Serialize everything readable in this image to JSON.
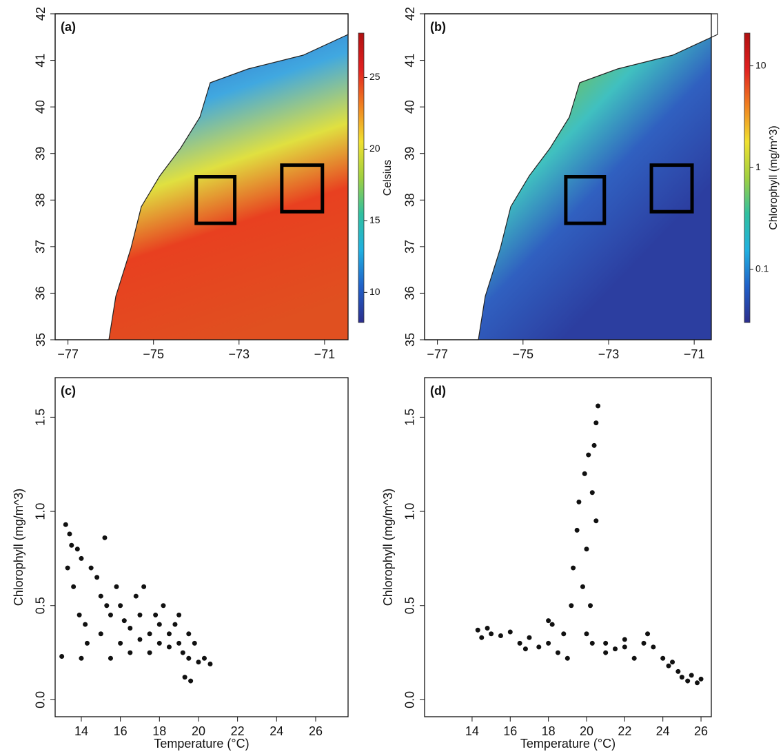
{
  "chart_data": [
    {
      "type": "map",
      "label": "(a)",
      "xlim": [
        -77.3,
        -70.45
      ],
      "ylim": [
        35,
        42
      ],
      "xticks": [
        {
          "value": -77,
          "label": "−77"
        },
        {
          "value": -75,
          "label": "−75"
        },
        {
          "value": -73,
          "label": "−73"
        },
        {
          "value": -71,
          "label": "−71"
        }
      ],
      "yticks": [
        35,
        36,
        37,
        38,
        39,
        40,
        41,
        42
      ],
      "boxes": [
        [
          -74,
          -73.1,
          37.5,
          38.5
        ],
        [
          -72,
          -71.05,
          37.75,
          38.75
        ]
      ],
      "colorbar": {
        "label": "Celsius",
        "lim": [
          7.9,
          28.1
        ],
        "ticks": [
          10,
          15,
          20,
          25
        ],
        "log": false,
        "colors": [
          "#2c2e8c",
          "#2060c8",
          "#20b0e0",
          "#30c0a0",
          "#a0d040",
          "#f0e030",
          "#f08020",
          "#e02020",
          "#b01010"
        ]
      }
    },
    {
      "type": "map",
      "label": "(b)",
      "xlim": [
        -77.3,
        -70.6
      ],
      "ylim": [
        35,
        42
      ],
      "xticks": [
        {
          "value": -77,
          "label": "−77"
        },
        {
          "value": -75,
          "label": "−75"
        },
        {
          "value": -73,
          "label": "−73"
        },
        {
          "value": -71,
          "label": "−71"
        }
      ],
      "yticks": [
        35,
        36,
        37,
        38,
        39,
        40,
        41,
        42
      ],
      "boxes": [
        [
          -74,
          -73.1,
          37.5,
          38.5
        ],
        [
          -72,
          -71.05,
          37.75,
          38.75
        ]
      ],
      "colorbar": {
        "label": "Chlorophyll (mg/m^3)",
        "lim": [
          0.03,
          21
        ],
        "ticks": [
          0.1,
          1,
          10
        ],
        "log": true,
        "colors": [
          "#2c2e8c",
          "#2060c8",
          "#20b0e0",
          "#30c0a0",
          "#a0d040",
          "#f0e030",
          "#f08020",
          "#e02020",
          "#b01010"
        ]
      }
    },
    {
      "type": "scatter",
      "label": "(c)",
      "xlabel": "Temperature (°C)",
      "ylabel": "Chlorophyll (mg/m^3)",
      "xlim": [
        12.66,
        27.66
      ],
      "ylim": [
        -0.09,
        1.71
      ],
      "xticks": [
        14,
        16,
        18,
        20,
        22,
        24,
        26
      ],
      "yticks": [
        {
          "value": 0,
          "label": "0.0"
        },
        0.5,
        {
          "value": 1,
          "label": "1.0"
        },
        1.5
      ],
      "color": "#111111",
      "x": [
        13.2,
        13.4,
        13.5,
        13.8,
        14.0,
        13.3,
        13.6,
        13.9,
        14.2,
        14.5,
        14.8,
        15.0,
        15.2,
        15.3,
        15.5,
        15.8,
        16.0,
        16.2,
        16.5,
        16.8,
        17.0,
        17.2,
        17.5,
        17.8,
        18.0,
        18.2,
        18.5,
        18.8,
        19.0,
        19.2,
        19.5,
        19.8,
        20.0,
        20.3,
        20.6,
        13.0,
        14.0,
        15.5,
        16.5,
        17.5,
        19.3,
        19.6,
        14.3,
        15.0,
        16.0,
        17.0,
        18.5,
        19.0,
        19.5,
        18.0
      ],
      "values": [
        0.93,
        0.88,
        0.82,
        0.8,
        0.75,
        0.7,
        0.6,
        0.45,
        0.4,
        0.7,
        0.65,
        0.55,
        0.86,
        0.5,
        0.45,
        0.6,
        0.5,
        0.42,
        0.38,
        0.55,
        0.45,
        0.6,
        0.35,
        0.45,
        0.3,
        0.5,
        0.35,
        0.4,
        0.3,
        0.25,
        0.22,
        0.3,
        0.2,
        0.22,
        0.19,
        0.23,
        0.22,
        0.22,
        0.25,
        0.25,
        0.12,
        0.1,
        0.3,
        0.35,
        0.3,
        0.32,
        0.28,
        0.45,
        0.35,
        0.4
      ]
    },
    {
      "type": "scatter",
      "label": "(d)",
      "xlabel": "Temperature (°C)",
      "ylabel": "Chlorophyll (mg/m^3)",
      "xlim": [
        11.51,
        26.54
      ],
      "ylim": [
        -0.09,
        1.71
      ],
      "xticks": [
        14,
        16,
        18,
        20,
        22,
        24,
        26
      ],
      "yticks": [
        {
          "value": 0,
          "label": "0.0"
        },
        0.5,
        {
          "value": 1,
          "label": "1.0"
        },
        1.5
      ],
      "color": "#111111",
      "x": [
        14.3,
        14.5,
        14.8,
        15.0,
        15.5,
        16.0,
        16.5,
        17.0,
        17.5,
        18.0,
        18.2,
        18.5,
        18.8,
        19.0,
        19.2,
        19.3,
        19.5,
        19.6,
        19.8,
        19.9,
        20.0,
        20.1,
        20.2,
        20.3,
        20.4,
        20.5,
        20.6,
        20.5,
        20.3,
        20.0,
        21.0,
        21.5,
        22.0,
        22.5,
        23.0,
        23.2,
        23.5,
        24.0,
        24.3,
        24.5,
        24.8,
        25.0,
        25.3,
        25.5,
        25.8,
        26.0,
        21.0,
        22.0,
        18.0,
        16.8
      ],
      "values": [
        0.37,
        0.33,
        0.38,
        0.35,
        0.34,
        0.36,
        0.3,
        0.33,
        0.28,
        0.3,
        0.4,
        0.25,
        0.35,
        0.22,
        0.5,
        0.7,
        0.9,
        1.05,
        0.6,
        1.2,
        0.8,
        1.3,
        0.5,
        1.1,
        1.35,
        1.47,
        1.56,
        0.95,
        0.3,
        0.35,
        0.3,
        0.27,
        0.28,
        0.22,
        0.3,
        0.35,
        0.28,
        0.22,
        0.18,
        0.2,
        0.15,
        0.12,
        0.1,
        0.13,
        0.09,
        0.11,
        0.25,
        0.32,
        0.42,
        0.27
      ]
    }
  ]
}
